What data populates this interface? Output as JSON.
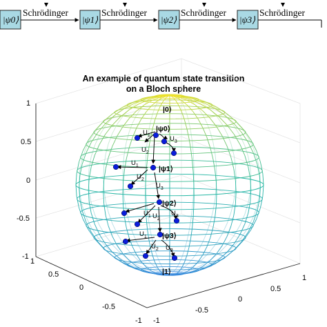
{
  "pipeline": {
    "states": [
      {
        "label": "|ψ0⟩"
      },
      {
        "label": "|ψ1⟩"
      },
      {
        "label": "|ψ2⟩"
      },
      {
        "label": "|ψ3⟩"
      }
    ],
    "step_label": "Schrödinger"
  },
  "sphere": {
    "title_line1": "An example of quantum state transition",
    "title_line2": "on a Bloch sphere",
    "north_pole": "|0⟩",
    "south_pole": "|1⟩",
    "z_ticks": [
      "1",
      "0.5",
      "0",
      "-0.5",
      "-1"
    ],
    "x_ticks": [
      "1",
      "0.5",
      "0",
      "-0.5",
      "-1"
    ],
    "y_ticks": [
      "-1",
      "-0.5",
      "0",
      "0.5",
      "1"
    ],
    "colormap": {
      "top": "#f7e21b",
      "middle": "#25b7a4",
      "bottom": "#3a86e2"
    },
    "dot_color": "#0a1ddb",
    "stages": [
      {
        "state": "|ψ0⟩",
        "operators": [
          "U",
          "U",
          "U"
        ],
        "subs": [
          "1",
          "2",
          "3"
        ]
      },
      {
        "state": "|ψ1⟩",
        "operators": [
          "U",
          "U",
          "U"
        ],
        "subs": [
          "1",
          "2",
          "3"
        ]
      },
      {
        "state": "|ψ2⟩",
        "operators": [
          "U",
          "U",
          "U"
        ],
        "subs": [
          "1",
          "2",
          "3"
        ]
      },
      {
        "state": "|ψ3⟩",
        "operators": [
          "U",
          "U",
          "U"
        ],
        "subs": [
          "1",
          "2",
          "3"
        ]
      }
    ]
  }
}
